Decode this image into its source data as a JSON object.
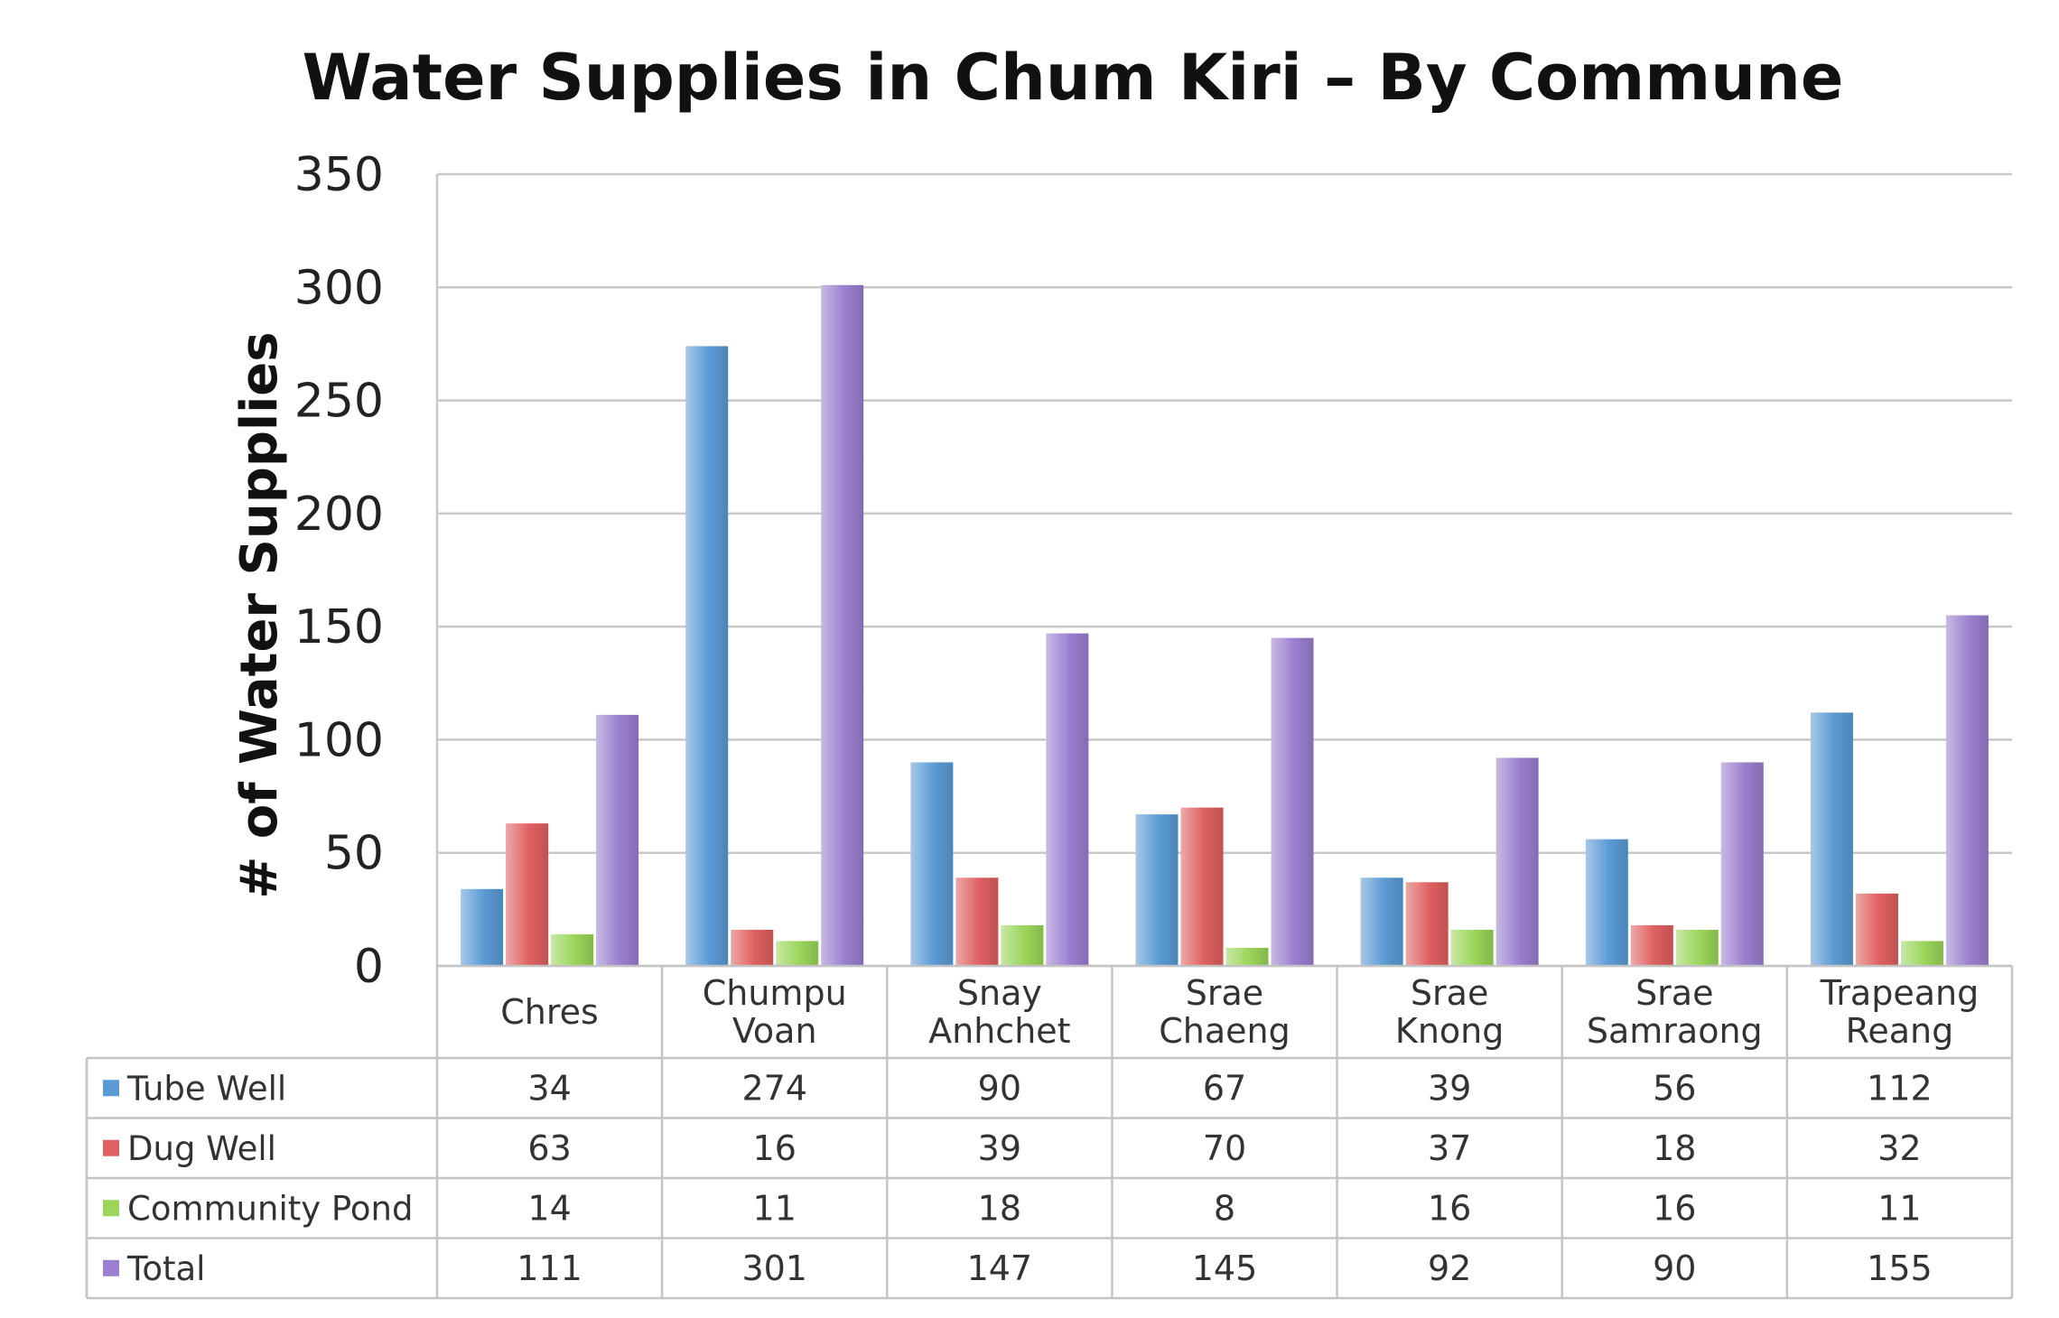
{
  "chart_data": {
    "type": "bar",
    "title": "Water Supplies in Chum Kiri – By Commune",
    "ylabel": "# of Water Supplies",
    "xlabel": "",
    "ylim": [
      0,
      350
    ],
    "yticks": [
      0,
      50,
      100,
      150,
      200,
      250,
      300,
      350
    ],
    "grid": true,
    "legend": "data-table",
    "categories": [
      [
        "Chres"
      ],
      [
        "Chumpu",
        "Voan"
      ],
      [
        "Snay",
        "Anhchet"
      ],
      [
        "Srae",
        "Chaeng"
      ],
      [
        "Srae",
        "Knong"
      ],
      [
        "Srae",
        "Samraong"
      ],
      [
        "Trapeang",
        "Reang"
      ]
    ],
    "series": [
      {
        "name": "Tube Well",
        "color": "#5b9bd5",
        "values": [
          34,
          274,
          90,
          67,
          39,
          56,
          112
        ]
      },
      {
        "name": "Dug Well",
        "color": "#e06060",
        "values": [
          63,
          16,
          39,
          70,
          37,
          18,
          32
        ]
      },
      {
        "name": "Community Pond",
        "color": "#9bd65a",
        "values": [
          14,
          11,
          18,
          8,
          16,
          16,
          11
        ]
      },
      {
        "name": "Total",
        "color": "#9b7fd0",
        "values": [
          111,
          301,
          147,
          145,
          92,
          90,
          155
        ]
      }
    ]
  }
}
